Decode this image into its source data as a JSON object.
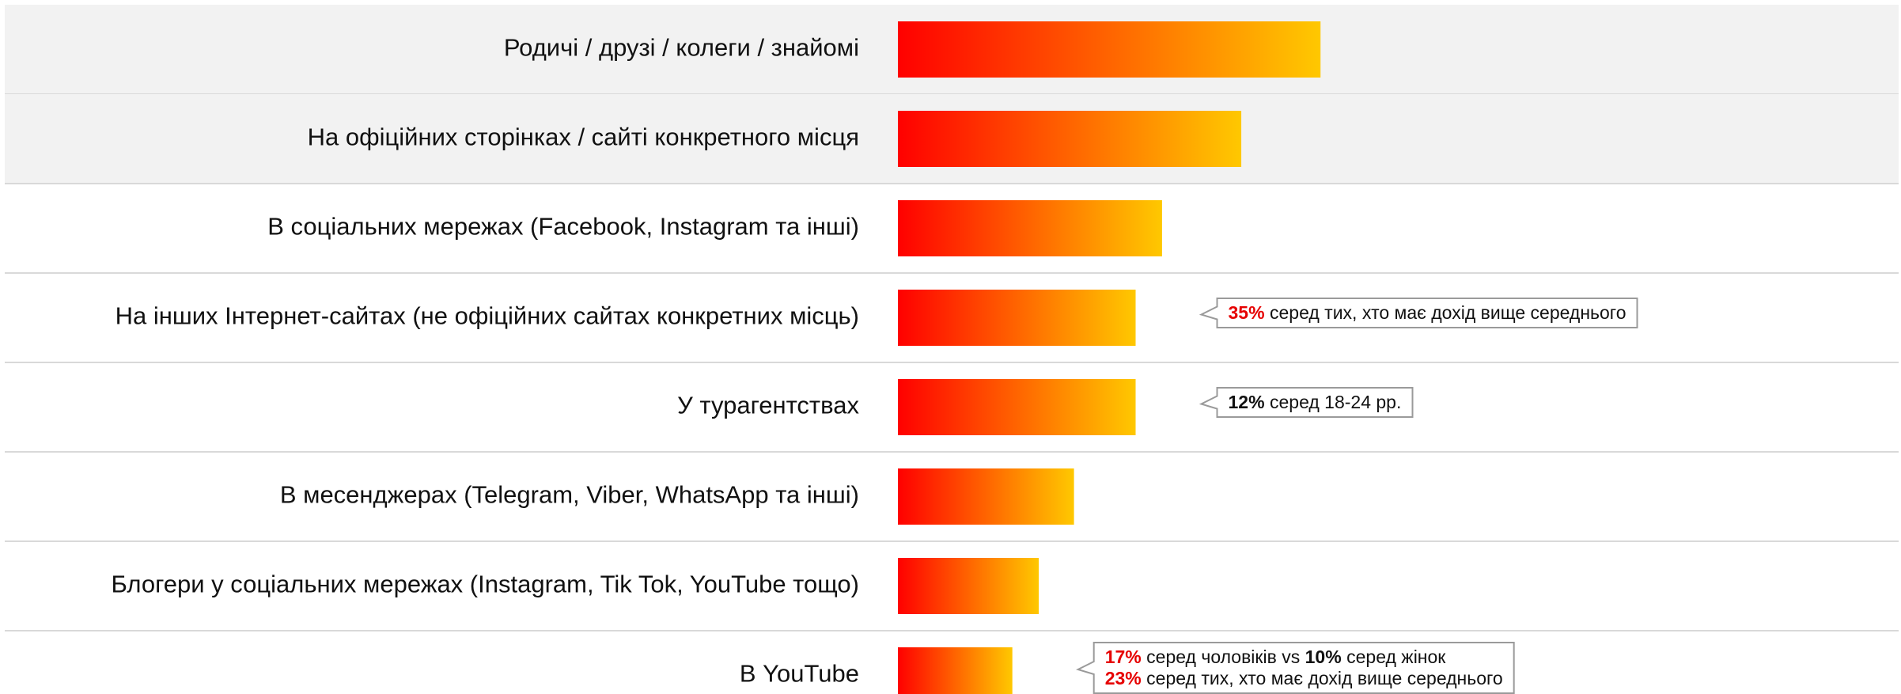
{
  "chart_data": {
    "type": "bar",
    "orientation": "horizontal",
    "categories": [
      "Родичі / друзі / колеги / знайомі",
      "На офіційних сторінках / сайті конкретного місця",
      "В соціальних мережах (Facebook, Instagram та інші)",
      "На інших Інтернет-сайтах (не офіційних сайтах конкретних місць)",
      "У турагентствах",
      "В месенджерах (Telegram, Viber, WhatsApp та інші)",
      "Блогери у соціальних мережах (Instagram, Tik Tok, YouTube тощо)",
      "В YouTube"
    ],
    "values": [
      48,
      39,
      30,
      27,
      27,
      20,
      16,
      13
    ],
    "xlim": [
      0,
      100
    ],
    "gradient": [
      "#ff0000",
      "#ffc800"
    ],
    "notes": [
      null,
      null,
      null,
      [
        [
          {
            "text": "35%",
            "style": "red"
          },
          {
            "text": "серед тих, хто має дохід вище середнього"
          }
        ]
      ],
      [
        [
          {
            "text": "12%",
            "style": "bold"
          },
          {
            "text": "серед 18-24 рр."
          }
        ]
      ],
      null,
      null,
      [
        [
          {
            "text": "17%",
            "style": "red"
          },
          {
            "text": "серед чоловіків vs"
          },
          {
            "text": "10%",
            "style": "bold"
          },
          {
            "text": "серед жінок"
          }
        ],
        [
          {
            "text": "23%",
            "style": "red"
          },
          {
            "text": "серед тих, хто має дохід вище середнього"
          }
        ]
      ]
    ]
  }
}
